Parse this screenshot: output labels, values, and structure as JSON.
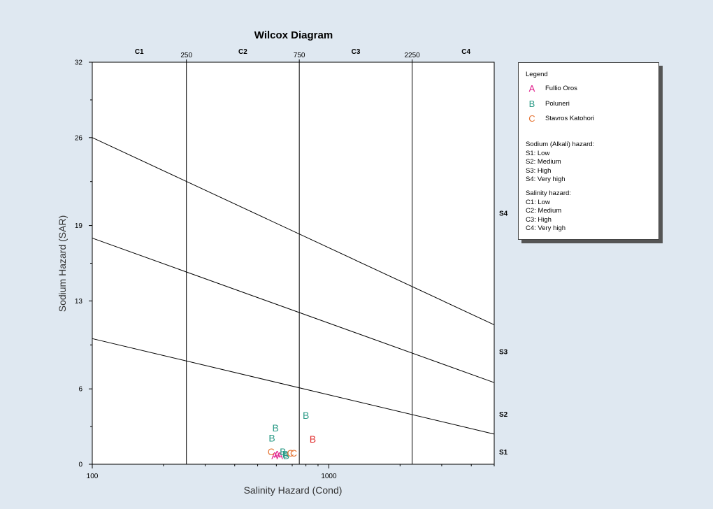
{
  "chart_data": {
    "type": "scatter",
    "title": "Wilcox Diagram",
    "xlabel": "Salinity Hazard (Cond)",
    "ylabel": "Sodium Hazard (SAR)",
    "x_scale": "log",
    "xlim": [
      100,
      5000
    ],
    "ylim": [
      0,
      32
    ],
    "x_tick_labels": [
      {
        "value": 100,
        "label": "100"
      },
      {
        "value": 1000,
        "label": "1000"
      }
    ],
    "y_ticks": [
      0,
      6,
      13,
      19,
      26,
      32
    ],
    "top_ticks": [
      {
        "value": 250,
        "label": "250"
      },
      {
        "value": 750,
        "label": "750"
      },
      {
        "value": 2250,
        "label": "2250"
      }
    ],
    "salinity_classes": [
      {
        "label": "C1",
        "x": 158
      },
      {
        "label": "C2",
        "x": 433
      },
      {
        "label": "C3",
        "x": 1300
      },
      {
        "label": "C4",
        "x": 3800
      }
    ],
    "salinity_boundaries": [
      250,
      750,
      2250
    ],
    "sodium_boundaries": [
      {
        "at_100": 10,
        "at_5000": 2.4
      },
      {
        "at_100": 18,
        "at_5000": 6.5
      },
      {
        "at_100": 26,
        "at_5000": 11.1
      }
    ],
    "sodium_classes": [
      {
        "label": "S1",
        "y": 1.0
      },
      {
        "label": "S2",
        "y": 4.0
      },
      {
        "label": "S3",
        "y": 9.0
      },
      {
        "label": "S4",
        "y": 20.0
      }
    ],
    "series": [
      {
        "name": "Fullio Oros",
        "symbol": "A",
        "color": "#e0198a",
        "points": [
          {
            "x": 590,
            "y": 0.7
          },
          {
            "x": 605,
            "y": 0.8
          },
          {
            "x": 620,
            "y": 0.7
          }
        ]
      },
      {
        "name": "Poluneri",
        "symbol": "B",
        "color": "#2a9a86",
        "points": [
          {
            "x": 800,
            "y": 3.9
          },
          {
            "x": 595,
            "y": 2.9
          },
          {
            "x": 575,
            "y": 2.1
          },
          {
            "x": 640,
            "y": 1.0
          },
          {
            "x": 655,
            "y": 0.8
          },
          {
            "x": 660,
            "y": 0.7
          }
        ]
      },
      {
        "name": "Stavros Katohori",
        "symbol": "C",
        "color": "#e57535",
        "points": [
          {
            "x": 570,
            "y": 1.0
          },
          {
            "x": 688,
            "y": 0.9
          },
          {
            "x": 710,
            "y": 0.9
          }
        ]
      },
      {
        "name": "",
        "symbol": "B",
        "color": "#e03030",
        "points": [
          {
            "x": 855,
            "y": 2.0
          }
        ]
      }
    ],
    "legend": {
      "title": "Legend",
      "position": "right",
      "sodium_heading": "Sodium (Alkali) hazard:",
      "sodium_items": [
        "S1: Low",
        "S2: Medium",
        "S3: High",
        "S4: Very high"
      ],
      "salinity_heading": "Salinity hazard:",
      "salinity_items": [
        "C1: Low",
        "C2: Medium",
        "C3: High",
        "C4: Very high"
      ]
    },
    "grid": false
  }
}
